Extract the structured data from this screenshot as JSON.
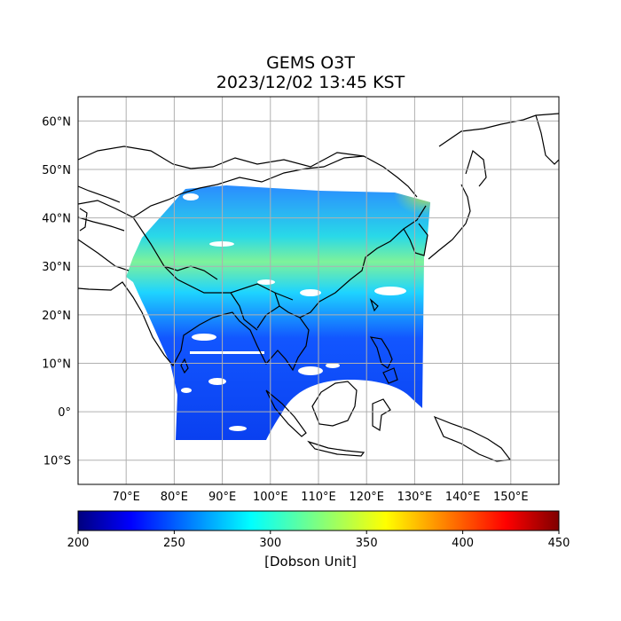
{
  "title": {
    "line1": "GEMS O3T",
    "line2": "2023/12/02 13:45 KST"
  },
  "map": {
    "lat_ticks": [
      "60°N",
      "50°N",
      "40°N",
      "30°N",
      "20°N",
      "10°N",
      "0°",
      "10°S"
    ],
    "lon_ticks": [
      "70°E",
      "80°E",
      "90°E",
      "100°E",
      "110°E",
      "120°E",
      "130°E",
      "140°E",
      "150°E"
    ],
    "lat_values": [
      60,
      50,
      40,
      30,
      20,
      10,
      0,
      -10
    ],
    "lon_values": [
      70,
      80,
      90,
      100,
      110,
      120,
      130,
      140,
      150
    ],
    "lon_range": [
      60,
      160
    ],
    "lat_range": [
      -15,
      65
    ],
    "grid": true
  },
  "colorbar": {
    "ticks": [
      "200",
      "250",
      "300",
      "350",
      "400",
      "450"
    ],
    "tick_values": [
      200,
      250,
      300,
      350,
      400,
      450
    ],
    "range": [
      200,
      450
    ],
    "colormap": "jet",
    "label": "[Dobson Unit]"
  }
}
